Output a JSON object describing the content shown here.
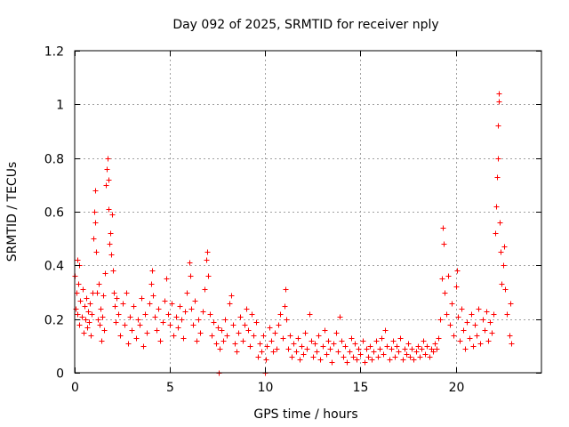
{
  "chart_data": {
    "type": "scatter",
    "title": "Day 092 of 2025, SRMTID for receiver nply",
    "xlabel": "GPS time / hours",
    "ylabel": "SRMTID / TECUs",
    "xlim": [
      0,
      24.5
    ],
    "ylim": [
      0,
      1.2
    ],
    "xticks": [
      0,
      5,
      10,
      15,
      20
    ],
    "xtick_labels": [
      "0",
      "5",
      "10",
      "15",
      "20"
    ],
    "yticks": [
      0,
      0.2,
      0.4,
      0.6,
      0.8,
      1,
      1.2
    ],
    "ytick_labels": [
      "0",
      "0.2",
      "0.4",
      "0.6",
      "0.8",
      "1",
      "1.2"
    ],
    "grid": true,
    "legend": "none",
    "marker": "+",
    "series": [
      {
        "name": "SRMTID",
        "color": "#ff0000",
        "points": [
          [
            0.0,
            0.36
          ],
          [
            0.05,
            0.24
          ],
          [
            0.1,
            0.3
          ],
          [
            0.12,
            0.42
          ],
          [
            0.15,
            0.22
          ],
          [
            0.2,
            0.33
          ],
          [
            0.22,
            0.4
          ],
          [
            0.25,
            0.18
          ],
          [
            0.3,
            0.27
          ],
          [
            0.35,
            0.21
          ],
          [
            0.4,
            0.31
          ],
          [
            0.45,
            0.15
          ],
          [
            0.5,
            0.25
          ],
          [
            0.55,
            0.2
          ],
          [
            0.6,
            0.28
          ],
          [
            0.65,
            0.17
          ],
          [
            0.7,
            0.23
          ],
          [
            0.75,
            0.19
          ],
          [
            0.8,
            0.26
          ],
          [
            0.85,
            0.14
          ],
          [
            0.9,
            0.22
          ],
          [
            0.95,
            0.3
          ],
          [
            1.0,
            0.5
          ],
          [
            1.02,
            0.6
          ],
          [
            1.05,
            0.68
          ],
          [
            1.08,
            0.56
          ],
          [
            1.1,
            0.45
          ],
          [
            1.15,
            0.3
          ],
          [
            1.2,
            0.2
          ],
          [
            1.25,
            0.33
          ],
          [
            1.3,
            0.18
          ],
          [
            1.35,
            0.24
          ],
          [
            1.4,
            0.12
          ],
          [
            1.45,
            0.21
          ],
          [
            1.5,
            0.29
          ],
          [
            1.55,
            0.16
          ],
          [
            1.6,
            0.37
          ],
          [
            1.65,
            0.7
          ],
          [
            1.7,
            0.76
          ],
          [
            1.72,
            0.8
          ],
          [
            1.75,
            0.72
          ],
          [
            1.78,
            0.61
          ],
          [
            1.8,
            0.48
          ],
          [
            1.85,
            0.52
          ],
          [
            1.9,
            0.44
          ],
          [
            1.95,
            0.59
          ],
          [
            2.0,
            0.38
          ],
          [
            2.05,
            0.3
          ],
          [
            2.1,
            0.25
          ],
          [
            2.15,
            0.19
          ],
          [
            2.2,
            0.28
          ],
          [
            2.3,
            0.22
          ],
          [
            2.4,
            0.14
          ],
          [
            2.5,
            0.26
          ],
          [
            2.6,
            0.18
          ],
          [
            2.7,
            0.3
          ],
          [
            2.8,
            0.11
          ],
          [
            2.9,
            0.21
          ],
          [
            3.0,
            0.16
          ],
          [
            3.1,
            0.25
          ],
          [
            3.2,
            0.13
          ],
          [
            3.3,
            0.2
          ],
          [
            3.4,
            0.18
          ],
          [
            3.5,
            0.28
          ],
          [
            3.6,
            0.1
          ],
          [
            3.7,
            0.22
          ],
          [
            3.8,
            0.15
          ],
          [
            3.9,
            0.26
          ],
          [
            4.0,
            0.33
          ],
          [
            4.05,
            0.38
          ],
          [
            4.1,
            0.29
          ],
          [
            4.2,
            0.21
          ],
          [
            4.3,
            0.16
          ],
          [
            4.4,
            0.24
          ],
          [
            4.5,
            0.12
          ],
          [
            4.6,
            0.19
          ],
          [
            4.7,
            0.27
          ],
          [
            4.8,
            0.35
          ],
          [
            4.9,
            0.22
          ],
          [
            5.0,
            0.18
          ],
          [
            5.1,
            0.26
          ],
          [
            5.2,
            0.14
          ],
          [
            5.3,
            0.21
          ],
          [
            5.4,
            0.17
          ],
          [
            5.5,
            0.25
          ],
          [
            5.6,
            0.2
          ],
          [
            5.7,
            0.13
          ],
          [
            5.8,
            0.23
          ],
          [
            5.9,
            0.3
          ],
          [
            6.0,
            0.41
          ],
          [
            6.05,
            0.36
          ],
          [
            6.1,
            0.24
          ],
          [
            6.2,
            0.18
          ],
          [
            6.3,
            0.27
          ],
          [
            6.4,
            0.12
          ],
          [
            6.5,
            0.2
          ],
          [
            6.6,
            0.15
          ],
          [
            6.7,
            0.23
          ],
          [
            6.8,
            0.31
          ],
          [
            6.9,
            0.42
          ],
          [
            6.95,
            0.45
          ],
          [
            7.0,
            0.36
          ],
          [
            7.1,
            0.22
          ],
          [
            7.2,
            0.14
          ],
          [
            7.3,
            0.19
          ],
          [
            7.4,
            0.11
          ],
          [
            7.5,
            0.17
          ],
          [
            7.55,
            0.0
          ],
          [
            7.6,
            0.09
          ],
          [
            7.7,
            0.16
          ],
          [
            7.8,
            0.12
          ],
          [
            7.9,
            0.2
          ],
          [
            8.0,
            0.14
          ],
          [
            8.1,
            0.26
          ],
          [
            8.2,
            0.29
          ],
          [
            8.3,
            0.18
          ],
          [
            8.4,
            0.11
          ],
          [
            8.5,
            0.08
          ],
          [
            8.6,
            0.15
          ],
          [
            8.7,
            0.21
          ],
          [
            8.8,
            0.12
          ],
          [
            8.9,
            0.18
          ],
          [
            9.0,
            0.24
          ],
          [
            9.1,
            0.16
          ],
          [
            9.2,
            0.1
          ],
          [
            9.3,
            0.22
          ],
          [
            9.4,
            0.14
          ],
          [
            9.5,
            0.19
          ],
          [
            9.6,
            0.06
          ],
          [
            9.7,
            0.11
          ],
          [
            9.8,
            0.08
          ],
          [
            9.9,
            0.14
          ],
          [
            10.0,
            0.0
          ],
          [
            10.05,
            0.05
          ],
          [
            10.1,
            0.1
          ],
          [
            10.2,
            0.17
          ],
          [
            10.3,
            0.12
          ],
          [
            10.4,
            0.08
          ],
          [
            10.5,
            0.15
          ],
          [
            10.6,
            0.09
          ],
          [
            10.7,
            0.18
          ],
          [
            10.8,
            0.22
          ],
          [
            10.9,
            0.13
          ],
          [
            11.0,
            0.25
          ],
          [
            11.05,
            0.31
          ],
          [
            11.1,
            0.2
          ],
          [
            11.2,
            0.09
          ],
          [
            11.3,
            0.14
          ],
          [
            11.4,
            0.06
          ],
          [
            11.5,
            0.11
          ],
          [
            11.6,
            0.08
          ],
          [
            11.7,
            0.13
          ],
          [
            11.8,
            0.05
          ],
          [
            11.9,
            0.1
          ],
          [
            12.0,
            0.07
          ],
          [
            12.1,
            0.15
          ],
          [
            12.2,
            0.09
          ],
          [
            12.3,
            0.22
          ],
          [
            12.4,
            0.12
          ],
          [
            12.5,
            0.06
          ],
          [
            12.6,
            0.11
          ],
          [
            12.7,
            0.08
          ],
          [
            12.8,
            0.14
          ],
          [
            12.9,
            0.05
          ],
          [
            13.0,
            0.1
          ],
          [
            13.1,
            0.16
          ],
          [
            13.2,
            0.07
          ],
          [
            13.3,
            0.12
          ],
          [
            13.4,
            0.09
          ],
          [
            13.5,
            0.04
          ],
          [
            13.6,
            0.11
          ],
          [
            13.7,
            0.15
          ],
          [
            13.8,
            0.08
          ],
          [
            13.9,
            0.21
          ],
          [
            14.0,
            0.12
          ],
          [
            14.1,
            0.06
          ],
          [
            14.2,
            0.1
          ],
          [
            14.3,
            0.04
          ],
          [
            14.4,
            0.08
          ],
          [
            14.5,
            0.13
          ],
          [
            14.6,
            0.06
          ],
          [
            14.7,
            0.11
          ],
          [
            14.8,
            0.05
          ],
          [
            14.9,
            0.09
          ],
          [
            15.0,
            0.07
          ],
          [
            15.1,
            0.12
          ],
          [
            15.2,
            0.04
          ],
          [
            15.3,
            0.09
          ],
          [
            15.4,
            0.06
          ],
          [
            15.5,
            0.1
          ],
          [
            15.6,
            0.05
          ],
          [
            15.7,
            0.08
          ],
          [
            15.8,
            0.12
          ],
          [
            15.9,
            0.06
          ],
          [
            16.0,
            0.09
          ],
          [
            16.1,
            0.13
          ],
          [
            16.2,
            0.07
          ],
          [
            16.3,
            0.16
          ],
          [
            16.4,
            0.1
          ],
          [
            16.5,
            0.05
          ],
          [
            16.6,
            0.09
          ],
          [
            16.7,
            0.12
          ],
          [
            16.8,
            0.06
          ],
          [
            16.9,
            0.1
          ],
          [
            17.0,
            0.08
          ],
          [
            17.1,
            0.13
          ],
          [
            17.2,
            0.05
          ],
          [
            17.3,
            0.09
          ],
          [
            17.4,
            0.07
          ],
          [
            17.5,
            0.11
          ],
          [
            17.6,
            0.06
          ],
          [
            17.7,
            0.09
          ],
          [
            17.8,
            0.05
          ],
          [
            17.9,
            0.08
          ],
          [
            18.0,
            0.1
          ],
          [
            18.1,
            0.06
          ],
          [
            18.2,
            0.09
          ],
          [
            18.3,
            0.12
          ],
          [
            18.4,
            0.07
          ],
          [
            18.5,
            0.1
          ],
          [
            18.6,
            0.06
          ],
          [
            18.7,
            0.09
          ],
          [
            18.8,
            0.08
          ],
          [
            18.9,
            0.11
          ],
          [
            19.0,
            0.09
          ],
          [
            19.1,
            0.13
          ],
          [
            19.2,
            0.2
          ],
          [
            19.25,
            0.35
          ],
          [
            19.3,
            0.54
          ],
          [
            19.35,
            0.48
          ],
          [
            19.4,
            0.3
          ],
          [
            19.5,
            0.22
          ],
          [
            19.6,
            0.36
          ],
          [
            19.7,
            0.18
          ],
          [
            19.8,
            0.26
          ],
          [
            19.9,
            0.14
          ],
          [
            20.0,
            0.32
          ],
          [
            20.05,
            0.38
          ],
          [
            20.1,
            0.21
          ],
          [
            20.2,
            0.12
          ],
          [
            20.3,
            0.24
          ],
          [
            20.4,
            0.16
          ],
          [
            20.5,
            0.09
          ],
          [
            20.6,
            0.19
          ],
          [
            20.7,
            0.13
          ],
          [
            20.8,
            0.22
          ],
          [
            20.9,
            0.1
          ],
          [
            21.0,
            0.18
          ],
          [
            21.1,
            0.14
          ],
          [
            21.2,
            0.24
          ],
          [
            21.3,
            0.11
          ],
          [
            21.4,
            0.2
          ],
          [
            21.5,
            0.16
          ],
          [
            21.6,
            0.23
          ],
          [
            21.7,
            0.12
          ],
          [
            21.8,
            0.19
          ],
          [
            21.9,
            0.15
          ],
          [
            22.0,
            0.22
          ],
          [
            22.05,
            0.52
          ],
          [
            22.1,
            0.62
          ],
          [
            22.15,
            0.73
          ],
          [
            22.2,
            0.8
          ],
          [
            22.22,
            0.92
          ],
          [
            22.25,
            1.01
          ],
          [
            22.28,
            1.04
          ],
          [
            22.3,
            0.56
          ],
          [
            22.35,
            0.45
          ],
          [
            22.4,
            0.33
          ],
          [
            22.5,
            0.4
          ],
          [
            22.55,
            0.47
          ],
          [
            22.6,
            0.31
          ],
          [
            22.7,
            0.22
          ],
          [
            22.8,
            0.14
          ],
          [
            22.85,
            0.26
          ],
          [
            22.9,
            0.11
          ]
        ]
      }
    ]
  }
}
